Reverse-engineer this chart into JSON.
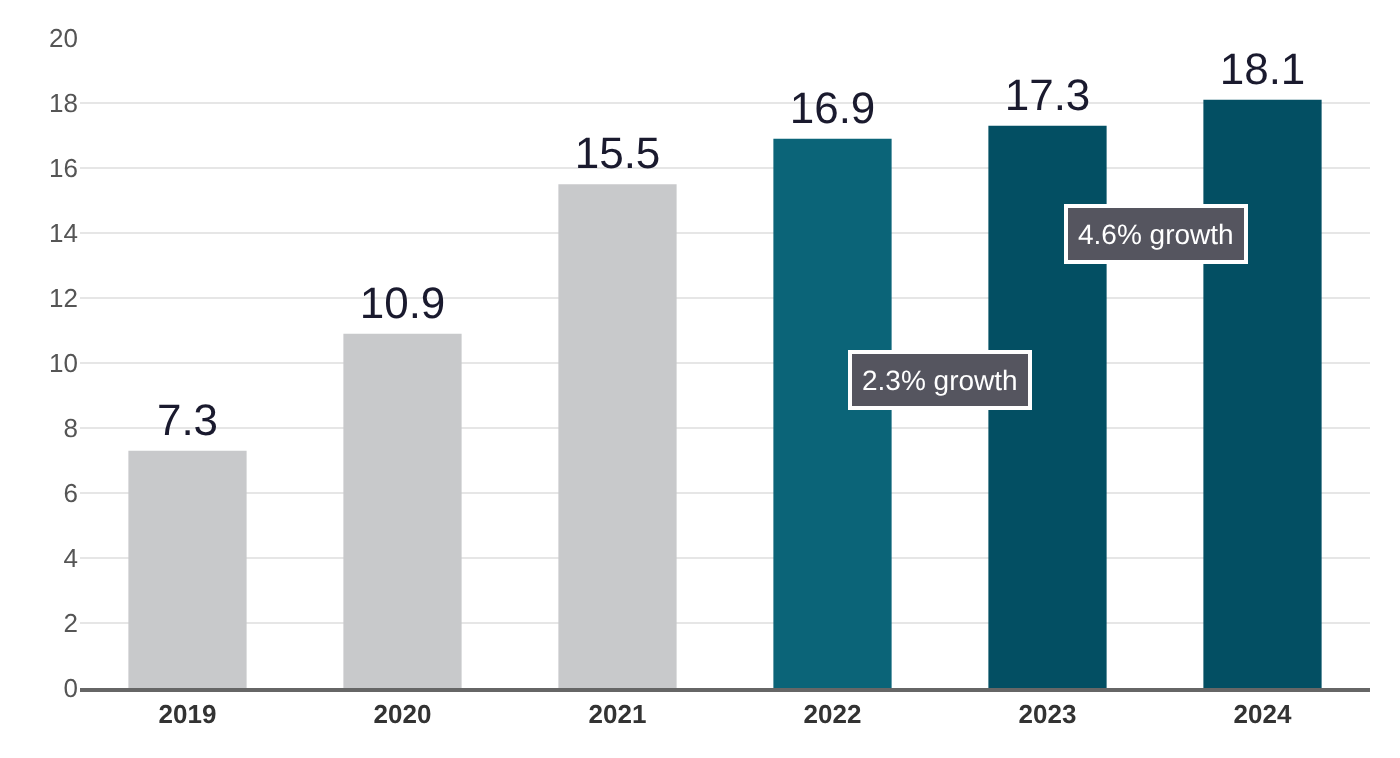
{
  "chart_data": {
    "type": "bar",
    "categories": [
      "2019",
      "2020",
      "2021",
      "2022",
      "2023",
      "2024"
    ],
    "values": [
      7.3,
      10.9,
      15.5,
      16.9,
      17.3,
      18.1
    ],
    "colors": [
      "#c8c9cb",
      "#c8c9cb",
      "#c8c9cb",
      "#0b6478",
      "#034f63",
      "#034f63"
    ],
    "ylim": [
      0,
      20
    ],
    "yticks": [
      0,
      2,
      4,
      6,
      8,
      10,
      12,
      14,
      16,
      18,
      20
    ],
    "grid": "y",
    "data_labels": true,
    "annotations": [
      "2.3% growth",
      "4.6% growth"
    ]
  }
}
